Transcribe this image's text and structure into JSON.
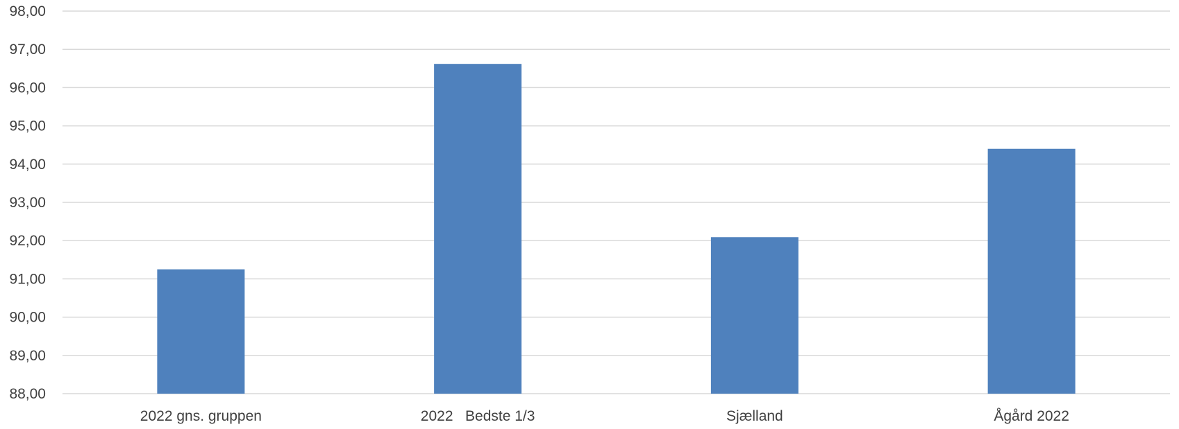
{
  "chart_data": {
    "type": "bar",
    "title": "",
    "xlabel": "",
    "ylabel": "",
    "categories": [
      "2022 gns. gruppen",
      "2022   Bedste 1/3",
      "Sjælland",
      "Ågård 2022"
    ],
    "values": [
      91.25,
      96.62,
      92.09,
      94.4
    ],
    "ylim": [
      88,
      98
    ],
    "ytick_step": 1,
    "ytick_labels": [
      "88,00",
      "89,00",
      "90,00",
      "91,00",
      "92,00",
      "93,00",
      "94,00",
      "95,00",
      "96,00",
      "97,00",
      "98,00"
    ],
    "grid": true,
    "legend": "none",
    "bar_color": "#4f81bd",
    "grid_color": "#d9d9d9",
    "text_color": "#404040"
  }
}
